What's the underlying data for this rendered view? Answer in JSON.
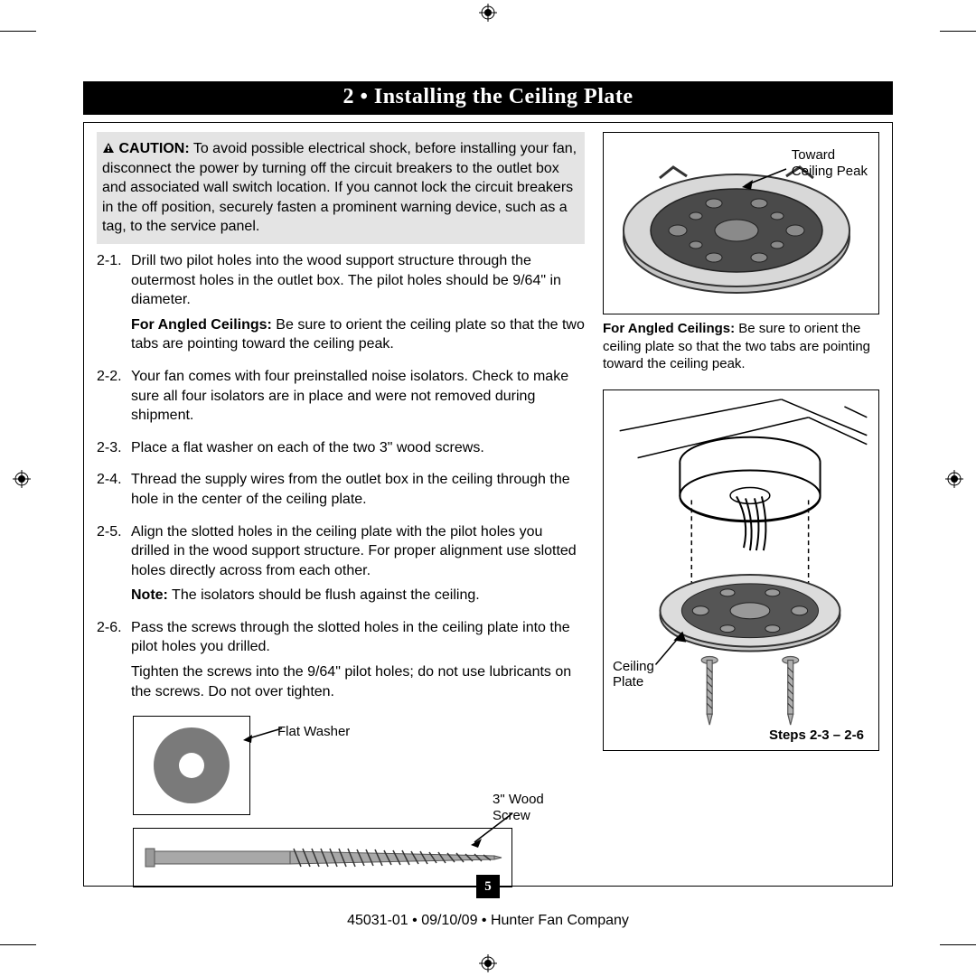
{
  "title": "2 • Installing the Ceiling Plate",
  "caution_label": "CAUTION:",
  "caution_text": "To avoid possible electrical shock, before installing your fan, disconnect the power by turning off the circuit breakers to the outlet box and associated wall switch location. If you cannot lock the circuit breakers in the off position, securely fasten a prominent warning device, such as a tag, to the service panel.",
  "steps": [
    {
      "num": "2-1.",
      "text": "Drill two pilot holes into the wood support structure through the outermost holes in the outlet box. The pilot holes should be 9/64\" in diameter.",
      "extra_label": "For Angled Ceilings:",
      "extra_text": "Be sure to orient the ceiling plate so that the two tabs are pointing toward the ceiling peak."
    },
    {
      "num": "2-2.",
      "text": "Your fan comes with four preinstalled noise isolators. Check to make sure all four isolators are in place and were not removed during shipment."
    },
    {
      "num": "2-3.",
      "text": "Place a flat washer on each of the two 3\" wood screws."
    },
    {
      "num": "2-4.",
      "text": "Thread the supply wires from the outlet box in the ceiling through the hole in the center of the ceiling plate."
    },
    {
      "num": "2-5.",
      "text": "Align the slotted holes in the ceiling plate with the pilot holes you drilled in the wood support structure. For proper alignment use slotted holes directly across from each other.",
      "extra_label": "Note:",
      "extra_text": "The isolators should be flush against the ceiling."
    },
    {
      "num": "2-6.",
      "text": "Pass the screws through the slotted holes in the ceiling plate into the pilot holes you drilled.",
      "extra_text2": "Tighten the screws into the 9/64\" pilot holes; do not use lubricants on the screws. Do not over tighten."
    }
  ],
  "fig1_label": "Toward\nCeiling Peak",
  "fig1_caption_label": "For Angled Ceilings:",
  "fig1_caption_text": "Be sure to orient the ceiling plate so that the two tabs are pointing toward the ceiling peak.",
  "fig2_label1": "Ceiling\nPlate",
  "fig2_label2": "Steps 2-3 – 2-6",
  "washer_label": "Flat Washer",
  "screw_label": "3\" Wood\nScrew",
  "page_num": "5",
  "footer": "45031-01  •  09/10/09  •  Hunter Fan Company",
  "colors": {
    "caution_bg": "#e4e4e4",
    "plate_gray": "#b8b8b8",
    "plate_dark": "#6a6a6a",
    "screw_gray": "#a8a8a8"
  }
}
